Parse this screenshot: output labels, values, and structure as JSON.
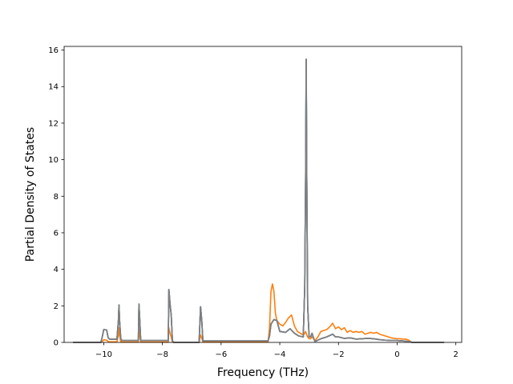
{
  "chart_data": {
    "type": "line",
    "title": "",
    "xlabel": "Frequency (THz)",
    "ylabel": "Partial Density of States",
    "xlim": [
      -11.35,
      2.2
    ],
    "ylim": [
      0,
      16.2
    ],
    "xticks": [
      -10,
      -8,
      -6,
      -4,
      -2,
      0,
      2
    ],
    "yticks": [
      0,
      2,
      4,
      6,
      8,
      10,
      12,
      14,
      16
    ],
    "xtick_labels": [
      "−10",
      "−8",
      "−6",
      "−4",
      "−2",
      "0",
      "2"
    ],
    "ytick_labels": [
      "0",
      "2",
      "4",
      "6",
      "8",
      "10",
      "12",
      "14",
      "16"
    ],
    "grid": false,
    "series": [
      {
        "color": "#1f77b4",
        "x": [
          -11.05,
          -10.1,
          -10.05,
          -10.0,
          -9.9,
          -9.85,
          -9.8,
          -9.55,
          -9.5,
          -9.48,
          -9.46,
          -9.42,
          -9.38,
          -9.0,
          -8.82,
          -8.8,
          -8.78,
          -8.74,
          -8.7,
          -8.0,
          -7.8,
          -7.78,
          -7.74,
          -7.7,
          -7.66,
          -7.62,
          -6.75,
          -6.7,
          -6.66,
          -6.62,
          -6.58,
          -4.4,
          -4.35,
          -4.3,
          -4.2,
          -4.1,
          -4.0,
          -3.8,
          -3.65,
          -3.5,
          -3.35,
          -3.2,
          -3.15,
          -3.12,
          -3.1,
          -3.08,
          -3.05,
          -3.0,
          -2.95,
          -2.9,
          -2.85,
          -2.8,
          -2.6,
          -2.4,
          -2.2,
          -2.1,
          -2.0,
          -1.8,
          -1.6,
          -1.4,
          -1.2,
          -1.0,
          -0.8,
          -0.6,
          -0.4,
          -0.2,
          0.0,
          0.2,
          0.4,
          0.48,
          0.5,
          1.6
        ],
        "y": [
          0.0,
          0.0,
          0.3,
          0.7,
          0.68,
          0.25,
          0.18,
          0.18,
          1.2,
          2.05,
          1.2,
          0.2,
          0.1,
          0.1,
          0.1,
          2.1,
          1.5,
          0.1,
          0.1,
          0.1,
          0.1,
          2.9,
          2.1,
          1.5,
          0.1,
          0.0,
          0.0,
          1.95,
          1.2,
          0.08,
          0.08,
          0.08,
          0.35,
          1.0,
          1.25,
          1.2,
          0.6,
          0.55,
          0.75,
          0.5,
          0.35,
          0.3,
          3.0,
          9.0,
          15.5,
          9.0,
          2.0,
          0.3,
          0.3,
          0.5,
          0.25,
          0.05,
          0.2,
          0.3,
          0.45,
          0.3,
          0.3,
          0.22,
          0.25,
          0.18,
          0.2,
          0.22,
          0.2,
          0.15,
          0.12,
          0.1,
          0.1,
          0.08,
          0.05,
          0.02,
          0.0,
          0.0
        ]
      },
      {
        "color": "#ff7f0e",
        "x": [
          -11.05,
          -10.1,
          -10.05,
          -10.0,
          -9.9,
          -9.85,
          -9.8,
          -9.55,
          -9.5,
          -9.48,
          -9.46,
          -9.42,
          -9.38,
          -9.0,
          -8.82,
          -8.8,
          -8.78,
          -8.74,
          -8.7,
          -8.0,
          -7.8,
          -7.78,
          -7.74,
          -7.7,
          -7.66,
          -7.62,
          -6.75,
          -6.7,
          -6.66,
          -6.62,
          -6.58,
          -4.4,
          -4.35,
          -4.3,
          -4.25,
          -4.2,
          -4.15,
          -4.1,
          -4.0,
          -3.9,
          -3.8,
          -3.7,
          -3.6,
          -3.5,
          -3.4,
          -3.3,
          -3.2,
          -3.15,
          -3.12,
          -3.1,
          -3.08,
          -3.05,
          -3.0,
          -2.95,
          -2.9,
          -2.85,
          -2.8,
          -2.7,
          -2.6,
          -2.5,
          -2.4,
          -2.3,
          -2.2,
          -2.1,
          -2.0,
          -1.9,
          -1.8,
          -1.7,
          -1.6,
          -1.5,
          -1.4,
          -1.3,
          -1.2,
          -1.1,
          -1.0,
          -0.9,
          -0.8,
          -0.7,
          -0.6,
          -0.5,
          -0.4,
          -0.3,
          -0.2,
          -0.1,
          0.0,
          0.1,
          0.2,
          0.3,
          0.4,
          0.45,
          0.5,
          1.6
        ],
        "y": [
          0.0,
          0.0,
          0.05,
          0.15,
          0.12,
          0.05,
          0.03,
          0.03,
          0.4,
          0.8,
          0.4,
          0.03,
          0.02,
          0.02,
          0.02,
          0.7,
          0.4,
          0.02,
          0.02,
          0.02,
          0.02,
          0.8,
          0.5,
          0.3,
          0.02,
          0.0,
          0.0,
          0.4,
          0.25,
          0.02,
          0.02,
          0.02,
          0.8,
          2.8,
          3.2,
          2.8,
          1.6,
          1.2,
          1.0,
          0.9,
          1.1,
          1.35,
          1.5,
          0.9,
          0.6,
          0.5,
          0.4,
          0.5,
          0.6,
          0.5,
          0.4,
          0.3,
          0.2,
          0.2,
          0.3,
          0.2,
          0.1,
          0.3,
          0.6,
          0.65,
          0.7,
          0.85,
          1.05,
          0.75,
          0.85,
          0.7,
          0.8,
          0.55,
          0.65,
          0.55,
          0.6,
          0.55,
          0.6,
          0.45,
          0.5,
          0.55,
          0.5,
          0.55,
          0.45,
          0.4,
          0.35,
          0.3,
          0.25,
          0.22,
          0.2,
          0.2,
          0.18,
          0.18,
          0.12,
          0.05,
          0.0,
          0.0
        ]
      },
      {
        "color": "#2ca02c",
        "x": [
          -11.05,
          -10.1,
          -10.05,
          -10.0,
          -9.9,
          -9.85,
          -9.8,
          -9.55,
          -9.5,
          -9.48,
          -9.46,
          -9.42,
          -9.38,
          -9.0,
          -8.82,
          -8.8,
          -8.78,
          -8.74,
          -8.7,
          -8.0,
          -7.8,
          -7.78,
          -7.74,
          -7.7,
          -7.66,
          -7.62,
          -6.75,
          -6.7,
          -6.66,
          -6.62,
          -6.58,
          -4.4,
          -4.35,
          -4.3,
          -4.2,
          -4.1,
          -4.0,
          -3.8,
          -3.65,
          -3.5,
          -3.35,
          -3.2,
          -3.15,
          -3.12,
          -3.1,
          -3.08,
          -3.05,
          -3.0,
          -2.95,
          -2.9,
          -2.85,
          -2.8,
          -2.6,
          -2.4,
          -2.2,
          -2.1,
          -2.0,
          -1.8,
          -1.6,
          -1.4,
          -1.2,
          -1.0,
          -0.8,
          -0.6,
          -0.4,
          -0.2,
          0.0,
          0.2,
          0.4,
          0.48,
          0.5,
          1.6
        ],
        "y": [
          0.0,
          0.0,
          0.3,
          0.7,
          0.68,
          0.25,
          0.18,
          0.18,
          1.2,
          2.05,
          1.2,
          0.2,
          0.1,
          0.1,
          0.1,
          2.1,
          1.5,
          0.1,
          0.1,
          0.1,
          0.1,
          2.9,
          2.1,
          1.5,
          0.1,
          0.0,
          0.0,
          1.95,
          1.2,
          0.08,
          0.08,
          0.08,
          0.35,
          1.0,
          1.25,
          1.2,
          0.6,
          0.55,
          0.75,
          0.5,
          0.35,
          0.3,
          3.0,
          9.0,
          15.5,
          9.0,
          2.0,
          0.3,
          0.3,
          0.5,
          0.25,
          0.05,
          0.2,
          0.3,
          0.45,
          0.3,
          0.3,
          0.22,
          0.25,
          0.18,
          0.2,
          0.22,
          0.2,
          0.15,
          0.12,
          0.1,
          0.1,
          0.08,
          0.05,
          0.02,
          0.0,
          0.0
        ]
      },
      {
        "color": "#9467bd",
        "x": [
          -11.05,
          -10.1,
          -10.05,
          -10.0,
          -9.9,
          -9.85,
          -9.8,
          -9.55,
          -9.5,
          -9.48,
          -9.46,
          -9.42,
          -9.38,
          -9.0,
          -8.82,
          -8.8,
          -8.78,
          -8.74,
          -8.7,
          -8.0,
          -7.8,
          -7.78,
          -7.74,
          -7.7,
          -7.66,
          -7.62,
          -6.75,
          -6.7,
          -6.66,
          -6.62,
          -6.58,
          -4.4,
          -4.35,
          -4.3,
          -4.2,
          -4.1,
          -4.0,
          -3.8,
          -3.65,
          -3.5,
          -3.35,
          -3.2,
          -3.15,
          -3.12,
          -3.1,
          -3.08,
          -3.05,
          -3.0,
          -2.95,
          -2.9,
          -2.85,
          -2.8,
          -2.6,
          -2.4,
          -2.2,
          -2.1,
          -2.0,
          -1.8,
          -1.6,
          -1.4,
          -1.2,
          -1.0,
          -0.8,
          -0.6,
          -0.4,
          -0.2,
          0.0,
          0.2,
          0.4,
          0.48,
          0.5,
          1.6
        ],
        "y": [
          0.0,
          0.0,
          0.3,
          0.7,
          0.68,
          0.25,
          0.18,
          0.18,
          1.2,
          2.05,
          1.2,
          0.2,
          0.1,
          0.1,
          0.1,
          2.1,
          1.5,
          0.1,
          0.1,
          0.1,
          0.1,
          2.9,
          2.1,
          1.5,
          0.1,
          0.0,
          0.0,
          1.95,
          1.2,
          0.08,
          0.08,
          0.08,
          0.35,
          1.0,
          1.25,
          1.2,
          0.6,
          0.55,
          0.75,
          0.5,
          0.35,
          0.3,
          3.0,
          9.0,
          15.5,
          9.0,
          2.0,
          0.3,
          0.3,
          0.5,
          0.25,
          0.05,
          0.2,
          0.3,
          0.45,
          0.3,
          0.3,
          0.22,
          0.25,
          0.18,
          0.2,
          0.22,
          0.2,
          0.15,
          0.12,
          0.1,
          0.1,
          0.08,
          0.05,
          0.02,
          0.0,
          0.0
        ]
      },
      {
        "color": "#7f7f7f",
        "x": [
          -11.05,
          -10.1,
          -10.05,
          -10.0,
          -9.9,
          -9.85,
          -9.8,
          -9.55,
          -9.5,
          -9.48,
          -9.46,
          -9.42,
          -9.38,
          -9.0,
          -8.82,
          -8.8,
          -8.78,
          -8.74,
          -8.7,
          -8.0,
          -7.8,
          -7.78,
          -7.74,
          -7.7,
          -7.66,
          -7.62,
          -6.75,
          -6.7,
          -6.66,
          -6.62,
          -6.58,
          -4.4,
          -4.35,
          -4.3,
          -4.2,
          -4.1,
          -4.0,
          -3.8,
          -3.65,
          -3.5,
          -3.35,
          -3.2,
          -3.15,
          -3.12,
          -3.1,
          -3.08,
          -3.05,
          -3.0,
          -2.95,
          -2.9,
          -2.85,
          -2.8,
          -2.6,
          -2.4,
          -2.2,
          -2.1,
          -2.0,
          -1.8,
          -1.6,
          -1.4,
          -1.2,
          -1.0,
          -0.8,
          -0.6,
          -0.4,
          -0.2,
          0.0,
          0.2,
          0.4,
          0.48,
          0.5,
          1.6
        ],
        "y": [
          0.0,
          0.0,
          0.3,
          0.7,
          0.68,
          0.25,
          0.18,
          0.18,
          1.2,
          2.05,
          1.2,
          0.2,
          0.1,
          0.1,
          0.1,
          2.1,
          1.5,
          0.1,
          0.1,
          0.1,
          0.1,
          2.9,
          2.1,
          1.5,
          0.1,
          0.0,
          0.0,
          1.95,
          1.2,
          0.08,
          0.08,
          0.08,
          0.35,
          1.0,
          1.25,
          1.2,
          0.6,
          0.55,
          0.75,
          0.5,
          0.35,
          0.3,
          3.0,
          9.0,
          15.5,
          9.0,
          2.0,
          0.3,
          0.3,
          0.5,
          0.25,
          0.05,
          0.2,
          0.3,
          0.45,
          0.3,
          0.3,
          0.22,
          0.25,
          0.18,
          0.2,
          0.22,
          0.2,
          0.15,
          0.12,
          0.1,
          0.1,
          0.08,
          0.05,
          0.02,
          0.0,
          0.0
        ]
      }
    ]
  }
}
